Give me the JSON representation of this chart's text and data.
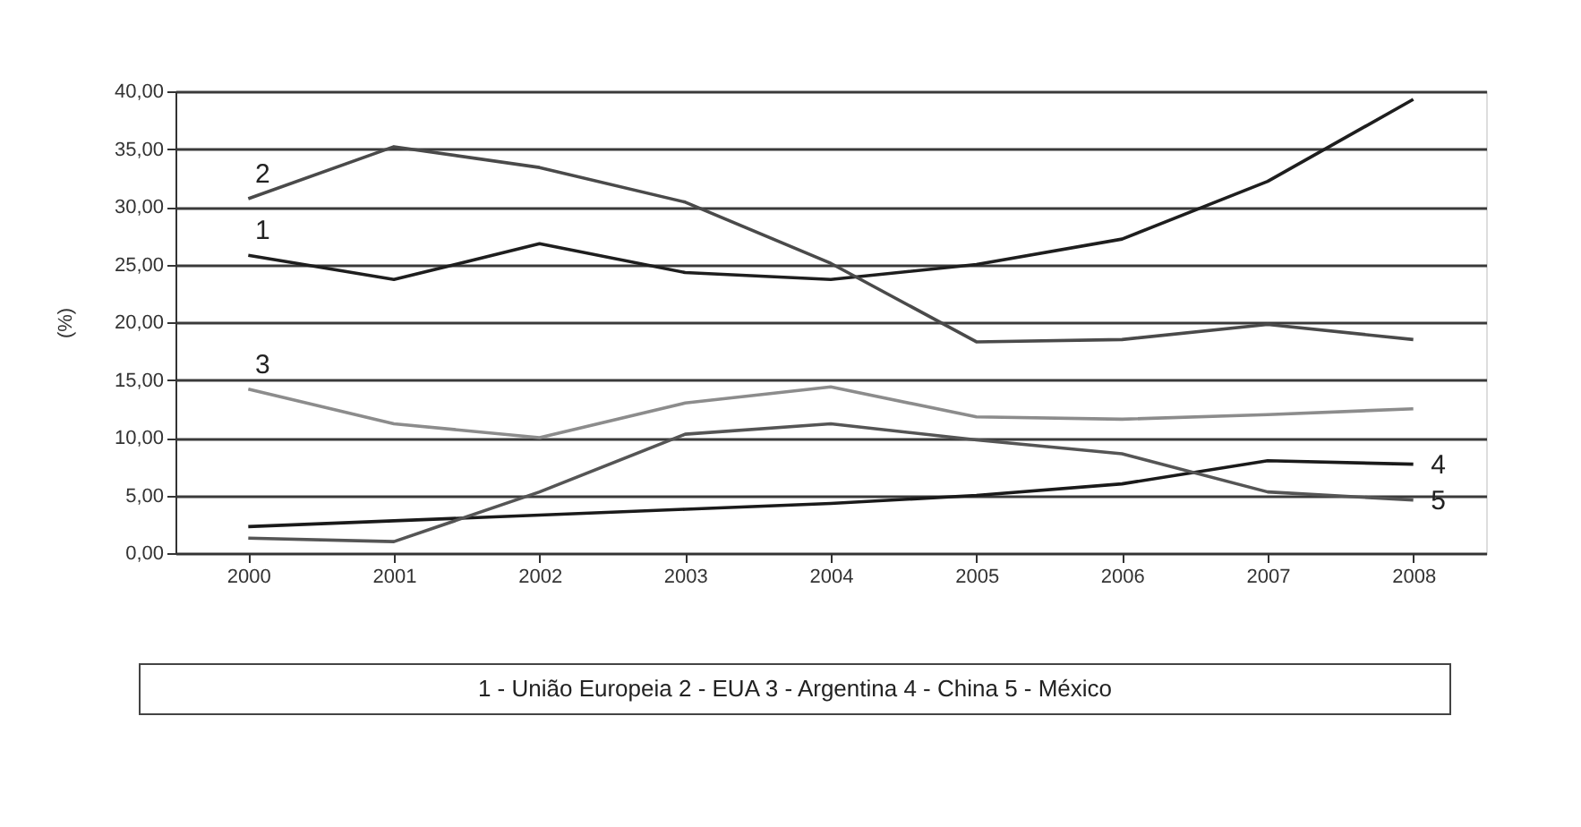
{
  "chart_data": {
    "type": "line",
    "ylabel": "(%)",
    "categories": [
      "2000",
      "2001",
      "2002",
      "2003",
      "2004",
      "2005",
      "2006",
      "2007",
      "2008"
    ],
    "series": [
      {
        "color": "#1e1e1e",
        "values": [
          25.8,
          23.7,
          26.8,
          24.3,
          23.7,
          25.0,
          27.2,
          32.2,
          39.3
        ]
      },
      {
        "color": "#4a4a4a",
        "values": [
          30.7,
          35.2,
          33.4,
          30.4,
          25.1,
          18.3,
          18.5,
          19.8,
          18.5
        ]
      },
      {
        "color": "#8c8c8c",
        "values": [
          14.2,
          11.2,
          10.0,
          13.0,
          14.4,
          11.8,
          11.6,
          12.0,
          12.5
        ]
      },
      {
        "color": "#1a1a1a",
        "values": [
          2.3,
          2.8,
          3.3,
          3.8,
          4.3,
          5.0,
          6.0,
          8.0,
          7.7
        ]
      },
      {
        "color": "#555555",
        "values": [
          1.3,
          1.0,
          5.3,
          10.3,
          11.2,
          9.8,
          8.6,
          5.3,
          4.6
        ]
      }
    ],
    "ylim": [
      0,
      40
    ],
    "yticks": [
      {
        "value": 0,
        "label": "0,00"
      },
      {
        "value": 5,
        "label": "5,00"
      },
      {
        "value": 10,
        "label": "10,00"
      },
      {
        "value": 15,
        "label": "15,00"
      },
      {
        "value": 20,
        "label": "20,00"
      },
      {
        "value": 25,
        "label": "25,00"
      },
      {
        "value": 30,
        "label": "30,00"
      },
      {
        "value": 35,
        "label": "35,00"
      },
      {
        "value": 40,
        "label": "40,00"
      }
    ],
    "grid": "y",
    "legend": false,
    "annotations": [
      {
        "text": "1",
        "x": "2000",
        "y": 25.8
      },
      {
        "text": "2",
        "x": "2000",
        "y": 30.7
      },
      {
        "text": "3",
        "x": "2000",
        "y": 14.2
      },
      {
        "text": "4",
        "x": "2008",
        "y": 7.7
      },
      {
        "text": "5",
        "x": "2008",
        "y": 4.6
      },
      "1 - União Europeia 2 - EUA 3 - Argentina 4 - China 5 - México"
    ]
  }
}
